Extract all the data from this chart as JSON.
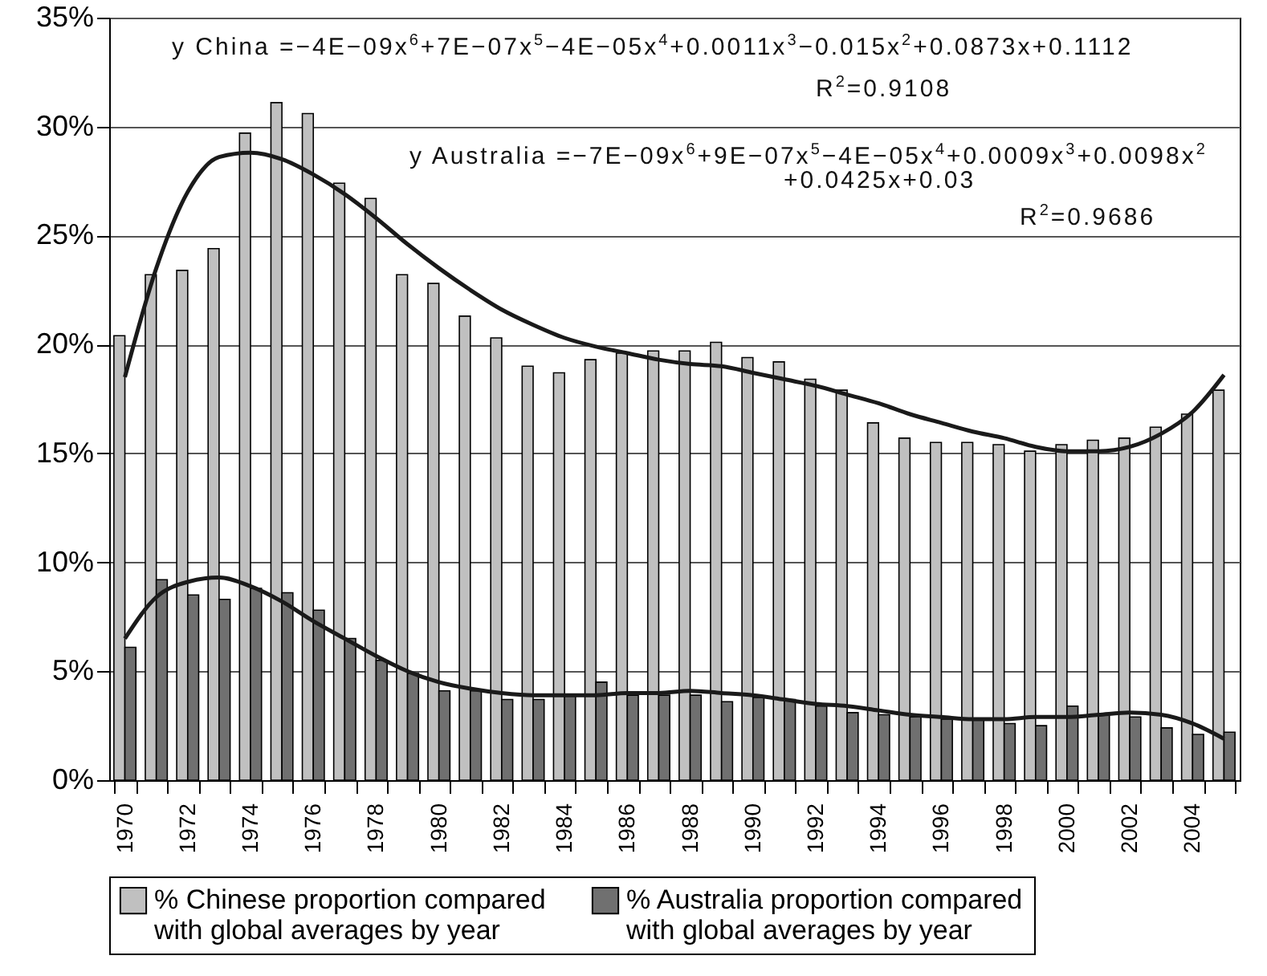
{
  "chart_data": {
    "type": "bar",
    "categories": [
      "1970",
      null,
      "1972",
      null,
      "1974",
      null,
      "1976",
      null,
      "1978",
      null,
      "1980",
      null,
      "1982",
      null,
      "1984",
      null,
      "1986",
      null,
      "1988",
      null,
      "1990",
      null,
      "1992",
      null,
      "1994",
      null,
      "1996",
      null,
      "1998",
      null,
      "2000",
      null,
      "2002",
      null,
      "2004",
      null
    ],
    "series": [
      {
        "name": "% Chinese proportion compared with global averages by year",
        "color": "#c0c0c0",
        "values": [
          20.4,
          23.2,
          23.4,
          24.4,
          29.7,
          31.1,
          30.6,
          27.4,
          26.7,
          23.2,
          22.8,
          21.3,
          20.3,
          19.0,
          18.7,
          19.3,
          19.6,
          19.7,
          19.7,
          20.1,
          19.4,
          19.2,
          18.4,
          17.9,
          16.4,
          15.7,
          15.5,
          15.5,
          15.4,
          15.1,
          15.4,
          15.6,
          15.7,
          16.2,
          16.8,
          17.9
        ]
      },
      {
        "name": "% Australia proportion compared with global averages by year",
        "color": "#707070",
        "values": [
          6.1,
          9.2,
          8.5,
          8.3,
          8.8,
          8.6,
          7.8,
          6.5,
          5.5,
          4.9,
          4.1,
          4.1,
          3.7,
          3.7,
          3.9,
          4.5,
          3.9,
          3.9,
          3.9,
          3.6,
          3.8,
          3.7,
          3.4,
          3.1,
          3.0,
          2.9,
          2.8,
          2.8,
          2.6,
          2.5,
          3.4,
          3.0,
          2.9,
          2.4,
          2.1,
          2.2
        ]
      },
      {
        "type": "line",
        "color": "#1a1a1a",
        "values": [
          18.5,
          23.5,
          27.0,
          28.6,
          28.8,
          28.5,
          27.8,
          26.9,
          25.8,
          24.6,
          23.5,
          22.5,
          21.6,
          20.9,
          20.3,
          19.9,
          19.6,
          19.3,
          19.1,
          19.0,
          18.7,
          18.4,
          18.1,
          17.7,
          17.3,
          16.8,
          16.4,
          16.0,
          15.7,
          15.3,
          15.1,
          15.1,
          15.3,
          15.9,
          16.9,
          18.6
        ]
      },
      {
        "type": "line",
        "color": "#1a1a1a",
        "values": [
          6.5,
          8.4,
          9.1,
          9.3,
          8.9,
          8.2,
          7.3,
          6.5,
          5.7,
          5.0,
          4.5,
          4.2,
          4.0,
          3.9,
          3.9,
          3.9,
          4.0,
          4.0,
          4.1,
          4.0,
          3.9,
          3.7,
          3.5,
          3.4,
          3.2,
          3.0,
          2.9,
          2.8,
          2.8,
          2.9,
          2.9,
          3.0,
          3.1,
          3.0,
          2.6,
          1.9
        ]
      }
    ],
    "ylim": [
      0,
      35
    ],
    "yticks": [
      {
        "value": 0,
        "label": "0%"
      },
      {
        "value": 5,
        "label": "5%"
      },
      {
        "value": 10,
        "label": "10%"
      },
      {
        "value": 15,
        "label": "15%"
      },
      {
        "value": 20,
        "label": "20%"
      },
      {
        "value": 25,
        "label": "25%"
      },
      {
        "value": 30,
        "label": "30%"
      },
      {
        "value": 35,
        "label": "35%"
      }
    ],
    "grid": "y",
    "legend": "bottom",
    "annotations": [
      "y China =−4E−09x$^{6}$+7E−07x$^{5}$−4E−05x$^{4}$+0.0011x$^{3}$−0.015x$^{2}$+0.0873x+0.1112",
      "R$^{2}$=0.9108",
      "y Australia =−7E−09x$^{6}$+9E−07x$^{5}$−4E−05x$^{4}$+0.0009x$^{3}$+0.0098x$^{2}$",
      "+0.0425x+0.03",
      "R$^{2}$=0.9686"
    ]
  }
}
